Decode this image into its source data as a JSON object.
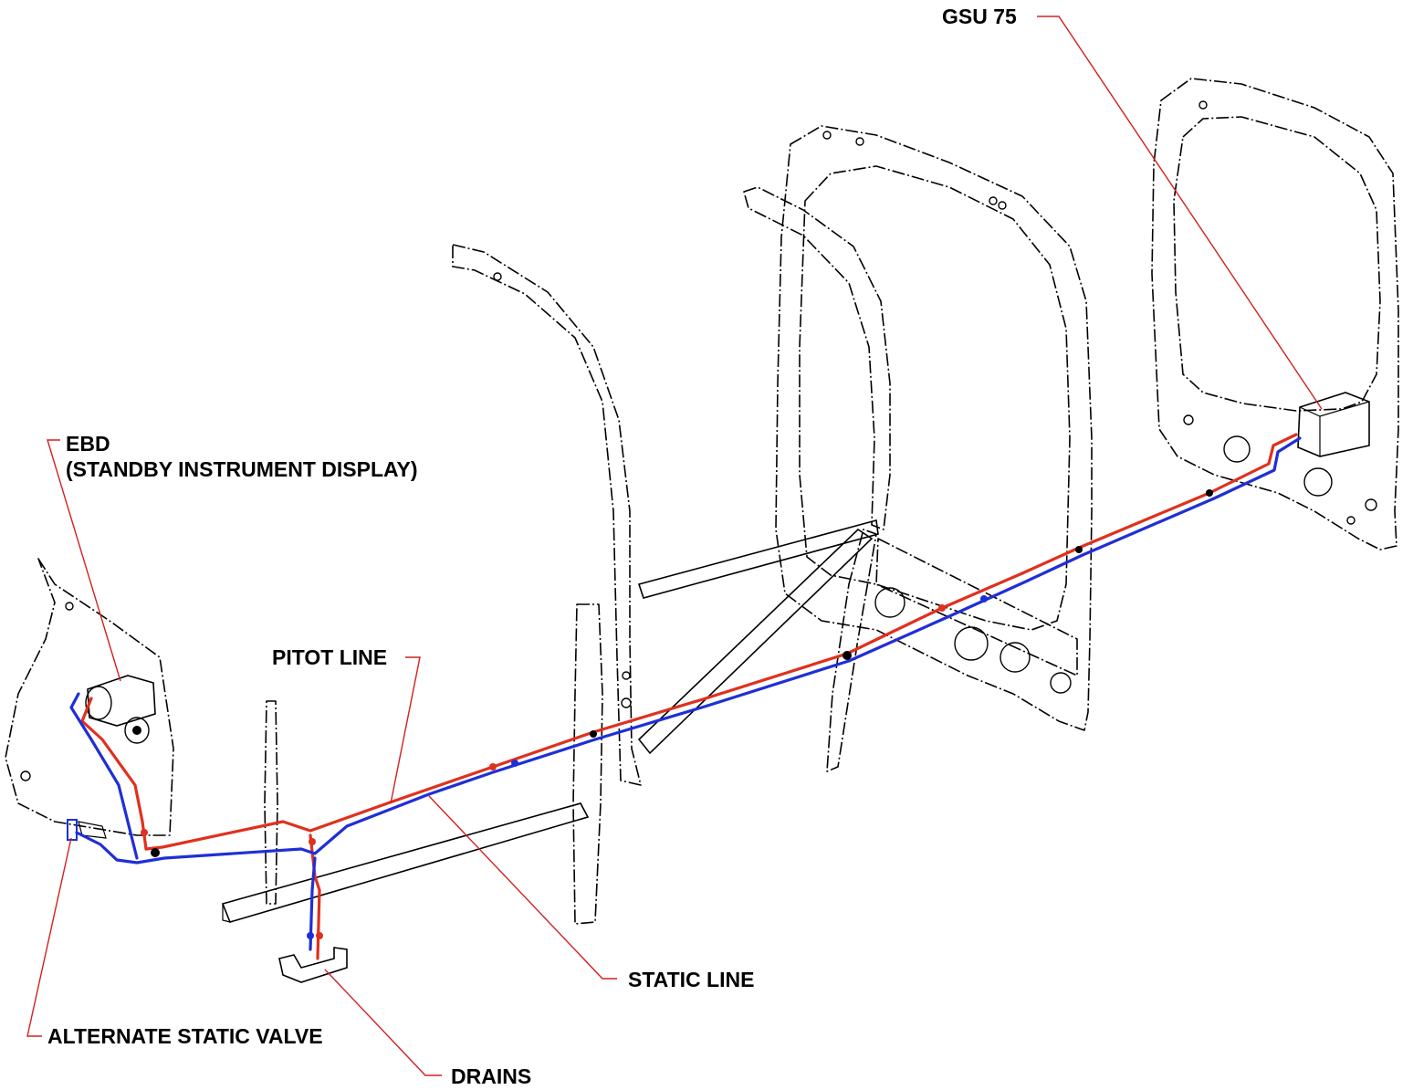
{
  "labels": {
    "gsu": "GSU 75",
    "ebd_line1": "EBD",
    "ebd_line2": "(STANDBY INSTRUMENT DISPLAY)",
    "pitot_line": "PITOT LINE",
    "static_line": "STATIC LINE",
    "alternate_static_valve": "ALTERNATE STATIC VALVE",
    "drains": "DRAINS"
  },
  "colors": {
    "pitot_line": "#e0301e",
    "static_line": "#1f2fd6",
    "leader": "#d22020",
    "structure": "#000000"
  }
}
